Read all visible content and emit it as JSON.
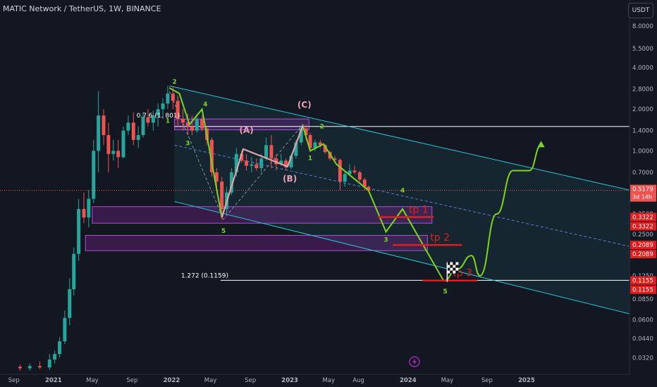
{
  "header": {
    "title": "MATIC Network / TetherUS, 1W, BINANCE",
    "unit_button": "USDT"
  },
  "colors": {
    "background": "#131722",
    "up": "#26a69a",
    "down": "#ef5350",
    "channel": "#26c6da",
    "projection": "#7ed321",
    "zone_fill": "#9c27b0",
    "target": "#e11d1d"
  },
  "icons": [
    "flag-icon",
    "lightning-icon"
  ],
  "chart_data": {
    "type": "candlestick",
    "scale": "log",
    "ylim": [
      0.0254,
      9.3
    ],
    "y_ticks": [
      "8.0000",
      "5.5000",
      "4.0000",
      "2.8000",
      "2.0000",
      "1.4000",
      "1.0000",
      "0.7000",
      "0.5000",
      "0.3500",
      "0.2500",
      "0.1800",
      "0.1250",
      "0.0850",
      "0.0600",
      "0.0440",
      "0.0320"
    ],
    "y_tick_values": [
      8.0,
      5.5,
      4.0,
      2.8,
      2.0,
      1.4,
      1.0,
      0.7,
      0.5,
      0.35,
      0.25,
      0.18,
      0.125,
      0.085,
      0.06,
      0.044,
      0.032
    ],
    "x_ticks": [
      "Sep",
      "2021",
      "May",
      "Sep",
      "2022",
      "May",
      "Sep",
      "2023",
      "May",
      "Aug",
      "2024",
      "May",
      "Sep",
      "2025"
    ],
    "x_tick_dates": [
      "2020-09-01",
      "2021-01-01",
      "2021-05-01",
      "2021-09-01",
      "2022-01-01",
      "2022-05-01",
      "2022-09-01",
      "2023-01-01",
      "2023-05-01",
      "2023-08-01",
      "2024-01-01",
      "2024-05-01",
      "2024-09-01",
      "2025-01-01"
    ],
    "price_labels": [
      {
        "text": "0.5179",
        "value": 0.5179,
        "bg": "#ef5350",
        "sub": "3d 14h"
      },
      {
        "text": "0.3322",
        "value": 0.3322,
        "bg": "#e11d1d"
      },
      {
        "text": "0.3322",
        "value": 0.3322,
        "bg": "#e11d1d",
        "offset": 1
      },
      {
        "text": "0.2089",
        "value": 0.2089,
        "bg": "#e11d1d"
      },
      {
        "text": "0.2089",
        "value": 0.2089,
        "bg": "#e11d1d",
        "offset": 1
      },
      {
        "text": "0.1155",
        "value": 0.1155,
        "bg": "#e11d1d"
      },
      {
        "text": "0.1155",
        "value": 0.1155,
        "bg": "#e11d1d",
        "offset": 1
      }
    ],
    "current_price": 0.5179,
    "horizontal_lines": [
      {
        "value": 1.5,
        "from": "2022-01-10",
        "to": "2025-12-01",
        "label": ""
      },
      {
        "value": 0.1159,
        "from": "2022-06-01",
        "to": "2025-12-01",
        "label": "1.272 (0.1159)"
      }
    ],
    "fib_label": "0.7 6 (1.  801)",
    "zones": [
      {
        "from": "2022-01-10",
        "to": "2023-03-01",
        "low": 1.42,
        "high": 1.7
      },
      {
        "from": "2021-05-01",
        "to": "2024-03-15",
        "low": 0.3,
        "high": 0.395
      },
      {
        "from": "2021-04-10",
        "to": "2024-03-01",
        "low": 0.19,
        "high": 0.245
      }
    ],
    "targets": [
      {
        "label": "tp 1",
        "value": 0.3322,
        "from": "2023-10-01",
        "to": "2024-03-20"
      },
      {
        "label": "tp 2",
        "value": 0.2089,
        "from": "2023-11-15",
        "to": "2024-06-15"
      },
      {
        "label": "tp 3",
        "value": 0.1155,
        "from": "2024-02-15",
        "to": "2024-08-01"
      }
    ],
    "candles": [
      {
        "d": "2020-09-20",
        "o": 0.0275,
        "h": 0.0285,
        "l": 0.0258,
        "c": 0.0268
      },
      {
        "d": "2020-10-20",
        "o": 0.0268,
        "h": 0.029,
        "l": 0.0258,
        "c": 0.0278
      },
      {
        "d": "2020-11-20",
        "o": 0.0278,
        "h": 0.03,
        "l": 0.0265,
        "c": 0.0272
      },
      {
        "d": "2020-12-20",
        "o": 0.0272,
        "h": 0.034,
        "l": 0.0262,
        "c": 0.031
      },
      {
        "d": "2021-01-05",
        "o": 0.031,
        "h": 0.036,
        "l": 0.029,
        "c": 0.034
      },
      {
        "d": "2021-01-20",
        "o": 0.034,
        "h": 0.045,
        "l": 0.032,
        "c": 0.042
      },
      {
        "d": "2021-02-05",
        "o": 0.042,
        "h": 0.07,
        "l": 0.04,
        "c": 0.062
      },
      {
        "d": "2021-02-20",
        "o": 0.062,
        "h": 0.12,
        "l": 0.055,
        "c": 0.1
      },
      {
        "d": "2021-03-05",
        "o": 0.1,
        "h": 0.2,
        "l": 0.09,
        "c": 0.18
      },
      {
        "d": "2021-03-20",
        "o": 0.18,
        "h": 0.45,
        "l": 0.16,
        "c": 0.38
      },
      {
        "d": "2021-04-05",
        "o": 0.38,
        "h": 0.5,
        "l": 0.3,
        "c": 0.33
      },
      {
        "d": "2021-04-20",
        "o": 0.33,
        "h": 0.52,
        "l": 0.28,
        "c": 0.45
      },
      {
        "d": "2021-05-05",
        "o": 0.45,
        "h": 1.2,
        "l": 0.42,
        "c": 1.0
      },
      {
        "d": "2021-05-20",
        "o": 1.0,
        "h": 2.7,
        "l": 0.7,
        "c": 1.8
      },
      {
        "d": "2021-06-05",
        "o": 1.8,
        "h": 2.0,
        "l": 1.1,
        "c": 1.3
      },
      {
        "d": "2021-06-20",
        "o": 1.3,
        "h": 1.6,
        "l": 0.7,
        "c": 0.95
      },
      {
        "d": "2021-07-05",
        "o": 0.95,
        "h": 1.2,
        "l": 0.85,
        "c": 1.0
      },
      {
        "d": "2021-07-20",
        "o": 1.0,
        "h": 1.2,
        "l": 0.75,
        "c": 0.9
      },
      {
        "d": "2021-08-05",
        "o": 0.9,
        "h": 1.5,
        "l": 0.88,
        "c": 1.4
      },
      {
        "d": "2021-08-20",
        "o": 1.4,
        "h": 1.8,
        "l": 1.3,
        "c": 1.6
      },
      {
        "d": "2021-09-05",
        "o": 1.6,
        "h": 1.9,
        "l": 1.1,
        "c": 1.2
      },
      {
        "d": "2021-09-20",
        "o": 1.2,
        "h": 1.5,
        "l": 1.05,
        "c": 1.3
      },
      {
        "d": "2021-10-05",
        "o": 1.3,
        "h": 1.9,
        "l": 1.25,
        "c": 1.75
      },
      {
        "d": "2021-10-20",
        "o": 1.75,
        "h": 2.0,
        "l": 1.5,
        "c": 1.6
      },
      {
        "d": "2021-11-05",
        "o": 1.6,
        "h": 1.95,
        "l": 1.4,
        "c": 1.8
      },
      {
        "d": "2021-11-20",
        "o": 1.8,
        "h": 2.2,
        "l": 1.5,
        "c": 2.0
      },
      {
        "d": "2021-12-05",
        "o": 2.0,
        "h": 2.4,
        "l": 1.7,
        "c": 2.2
      },
      {
        "d": "2021-12-20",
        "o": 2.2,
        "h": 2.95,
        "l": 2.0,
        "c": 2.6
      },
      {
        "d": "2022-01-05",
        "o": 2.6,
        "h": 2.9,
        "l": 2.0,
        "c": 2.3
      },
      {
        "d": "2022-01-20",
        "o": 2.3,
        "h": 2.5,
        "l": 1.5,
        "c": 1.7
      },
      {
        "d": "2022-02-05",
        "o": 1.7,
        "h": 2.0,
        "l": 1.4,
        "c": 1.6
      },
      {
        "d": "2022-02-20",
        "o": 1.6,
        "h": 1.85,
        "l": 1.3,
        "c": 1.5
      },
      {
        "d": "2022-03-05",
        "o": 1.5,
        "h": 1.8,
        "l": 1.3,
        "c": 1.4
      },
      {
        "d": "2022-03-20",
        "o": 1.4,
        "h": 1.85,
        "l": 1.35,
        "c": 1.7
      },
      {
        "d": "2022-04-05",
        "o": 1.7,
        "h": 1.8,
        "l": 1.4,
        "c": 1.45
      },
      {
        "d": "2022-04-20",
        "o": 1.45,
        "h": 1.5,
        "l": 1.1,
        "c": 1.2
      },
      {
        "d": "2022-05-05",
        "o": 1.2,
        "h": 1.25,
        "l": 0.65,
        "c": 0.7
      },
      {
        "d": "2022-05-20",
        "o": 0.7,
        "h": 0.75,
        "l": 0.55,
        "c": 0.6
      },
      {
        "d": "2022-06-05",
        "o": 0.6,
        "h": 0.65,
        "l": 0.32,
        "c": 0.38
      },
      {
        "d": "2022-06-20",
        "o": 0.38,
        "h": 0.55,
        "l": 0.35,
        "c": 0.5
      },
      {
        "d": "2022-07-05",
        "o": 0.5,
        "h": 0.75,
        "l": 0.48,
        "c": 0.7
      },
      {
        "d": "2022-07-20",
        "o": 0.7,
        "h": 1.05,
        "l": 0.65,
        "c": 0.95
      },
      {
        "d": "2022-08-05",
        "o": 0.95,
        "h": 1.0,
        "l": 0.82,
        "c": 0.85
      },
      {
        "d": "2022-08-20",
        "o": 0.85,
        "h": 0.95,
        "l": 0.72,
        "c": 0.78
      },
      {
        "d": "2022-09-05",
        "o": 0.78,
        "h": 0.9,
        "l": 0.7,
        "c": 0.8
      },
      {
        "d": "2022-09-20",
        "o": 0.8,
        "h": 0.88,
        "l": 0.72,
        "c": 0.75
      },
      {
        "d": "2022-10-05",
        "o": 0.75,
        "h": 0.95,
        "l": 0.7,
        "c": 0.88
      },
      {
        "d": "2022-10-20",
        "o": 0.88,
        "h": 1.25,
        "l": 0.85,
        "c": 1.1
      },
      {
        "d": "2022-11-05",
        "o": 1.1,
        "h": 1.3,
        "l": 0.75,
        "c": 0.88
      },
      {
        "d": "2022-11-20",
        "o": 0.88,
        "h": 0.95,
        "l": 0.72,
        "c": 0.8
      },
      {
        "d": "2022-12-05",
        "o": 0.8,
        "h": 0.95,
        "l": 0.78,
        "c": 0.85
      },
      {
        "d": "2022-12-20",
        "o": 0.85,
        "h": 0.88,
        "l": 0.72,
        "c": 0.76
      },
      {
        "d": "2023-01-05",
        "o": 0.76,
        "h": 0.95,
        "l": 0.74,
        "c": 0.92
      },
      {
        "d": "2023-01-20",
        "o": 0.92,
        "h": 1.2,
        "l": 0.88,
        "c": 1.15
      },
      {
        "d": "2023-02-05",
        "o": 1.15,
        "h": 1.5,
        "l": 1.1,
        "c": 1.45
      },
      {
        "d": "2023-02-20",
        "o": 1.45,
        "h": 1.55,
        "l": 1.2,
        "c": 1.3
      },
      {
        "d": "2023-03-05",
        "o": 1.3,
        "h": 1.35,
        "l": 1.0,
        "c": 1.05
      },
      {
        "d": "2023-03-20",
        "o": 1.05,
        "h": 1.2,
        "l": 1.0,
        "c": 1.15
      },
      {
        "d": "2023-04-05",
        "o": 1.15,
        "h": 1.2,
        "l": 1.05,
        "c": 1.1
      },
      {
        "d": "2023-04-20",
        "o": 1.1,
        "h": 1.12,
        "l": 0.95,
        "c": 0.98
      },
      {
        "d": "2023-05-05",
        "o": 0.98,
        "h": 1.0,
        "l": 0.85,
        "c": 0.88
      },
      {
        "d": "2023-05-20",
        "o": 0.88,
        "h": 0.92,
        "l": 0.82,
        "c": 0.86
      },
      {
        "d": "2023-06-05",
        "o": 0.86,
        "h": 0.88,
        "l": 0.52,
        "c": 0.6
      },
      {
        "d": "2023-06-20",
        "o": 0.6,
        "h": 0.7,
        "l": 0.55,
        "c": 0.68
      },
      {
        "d": "2023-07-05",
        "o": 0.68,
        "h": 0.8,
        "l": 0.66,
        "c": 0.72
      },
      {
        "d": "2023-07-20",
        "o": 0.72,
        "h": 0.78,
        "l": 0.68,
        "c": 0.7
      },
      {
        "d": "2023-08-05",
        "o": 0.7,
        "h": 0.72,
        "l": 0.6,
        "c": 0.62
      },
      {
        "d": "2023-08-20",
        "o": 0.62,
        "h": 0.64,
        "l": 0.52,
        "c": 0.55
      },
      {
        "d": "2023-09-01",
        "o": 0.55,
        "h": 0.56,
        "l": 0.51,
        "c": 0.5179
      }
    ],
    "channel_lines": [
      {
        "points": [
          [
            "2021-12-25",
            2.95
          ],
          [
            "2025-12-01",
            0.51
          ]
        ],
        "dash": false
      },
      {
        "points": [
          [
            "2022-01-10",
            0.43
          ],
          [
            "2025-12-01",
            0.065
          ]
        ],
        "dash": false
      },
      {
        "points": [
          [
            "2022-01-10",
            1.1
          ],
          [
            "2025-12-01",
            0.2
          ]
        ],
        "dash": true
      }
    ],
    "grey_dashed": [
      {
        "points": [
          [
            "2021-12-25",
            2.7
          ],
          [
            "2022-06-10",
            0.32
          ],
          [
            "2023-02-10",
            1.55
          ]
        ]
      }
    ],
    "wave_path": [
      [
        "2021-12-25",
        2.85
      ],
      [
        "2022-01-25",
        2.6
      ],
      [
        "2022-02-25",
        1.55
      ],
      [
        "2022-04-05",
        2.0
      ],
      [
        "2022-06-05",
        0.33
      ],
      [
        "2022-08-10",
        1.03
      ],
      [
        "2022-12-25",
        0.77
      ],
      [
        "2023-02-10",
        1.52
      ],
      [
        "2023-03-05",
        1.0
      ],
      [
        "2023-04-15",
        1.12
      ],
      [
        "2023-05-25",
        0.8
      ],
      [
        "2023-09-01",
        0.5179
      ],
      [
        "2023-10-25",
        0.26
      ],
      [
        "2023-12-15",
        0.38
      ],
      [
        "2024-04-20",
        0.115
      ]
    ],
    "recovery_path": [
      [
        "2024-04-20",
        0.115
      ],
      [
        "2024-06-01",
        0.14
      ],
      [
        "2024-07-15",
        0.175
      ],
      [
        "2024-08-10",
        0.125
      ],
      [
        "2024-10-01",
        0.35
      ],
      [
        "2024-11-20",
        0.72
      ],
      [
        "2025-01-10",
        0.72
      ],
      [
        "2025-02-15",
        1.1
      ]
    ],
    "wave_labels": [
      {
        "text": "2",
        "d": "2022-01-10",
        "v": 3.05,
        "color": "#7ed321"
      },
      {
        "text": "4",
        "d": "2022-04-15",
        "v": 2.1,
        "color": "#7ed321"
      },
      {
        "text": "1",
        "d": "2021-12-20",
        "v": 1.6,
        "color": "#7ed321"
      },
      {
        "text": "3",
        "d": "2022-02-20",
        "v": 1.1,
        "color": "#7ed321"
      },
      {
        "text": "5",
        "d": "2022-06-10",
        "v": 0.255,
        "color": "#7ed321"
      },
      {
        "text": "(A)",
        "d": "2022-08-20",
        "v": 1.35,
        "color": "#e8a0b4"
      },
      {
        "text": "(B)",
        "d": "2023-01-01",
        "v": 0.6,
        "color": "#e8a0b4"
      },
      {
        "text": "(C)",
        "d": "2023-02-15",
        "v": 2.05,
        "color": "#e8a0b4"
      },
      {
        "text": "2",
        "d": "2023-04-10",
        "v": 1.45,
        "color": "#7ed321"
      },
      {
        "text": "1",
        "d": "2023-03-05",
        "v": 0.86,
        "color": "#7ed321"
      },
      {
        "text": "4",
        "d": "2023-12-15",
        "v": 0.5,
        "color": "#7ed321"
      },
      {
        "text": "3",
        "d": "2023-10-25",
        "v": 0.22,
        "color": "#7ed321"
      },
      {
        "text": "5",
        "d": "2024-04-25",
        "v": 0.093,
        "color": "#7ed321"
      }
    ]
  }
}
